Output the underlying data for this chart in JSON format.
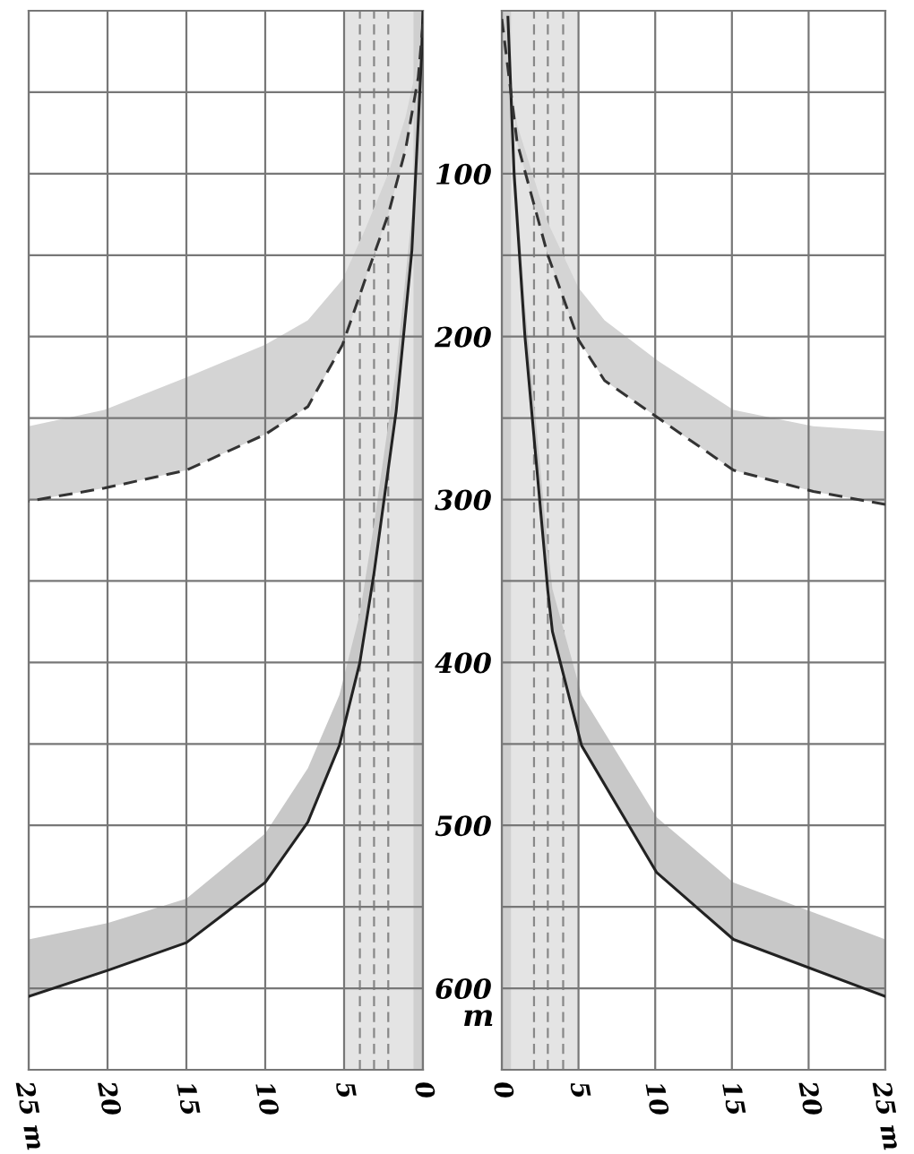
{
  "chart_data": [
    {
      "type": "line",
      "xlim": [
        25,
        0
      ],
      "ylim": [
        650,
        0
      ],
      "tick_labels": "x",
      "grid": true,
      "xticks": [
        {
          "value": 25,
          "label": "25 m"
        },
        20,
        15,
        10,
        5,
        0
      ],
      "yticks": [
        {
          "value": 0,
          "label": null
        },
        {
          "value": 50,
          "label": null
        },
        100,
        {
          "value": 150,
          "label": null
        },
        200,
        {
          "value": 250,
          "label": null
        },
        300,
        {
          "value": 350,
          "label": null
        },
        400,
        {
          "value": 450,
          "label": null
        },
        500,
        {
          "value": 550,
          "label": null
        },
        600
      ],
      "bands": [
        {
          "axis": "x",
          "from": 0,
          "to": 5,
          "color": "#e4e4e4"
        },
        {
          "axis": "x",
          "from": 0,
          "to": 0.6,
          "color": "#cfcfcf"
        }
      ],
      "ref_lines": [
        {
          "axis": "x",
          "value": 2.2,
          "color": "#888888",
          "line_style": "dashed"
        },
        {
          "axis": "x",
          "value": 3.1,
          "color": "#888888",
          "line_style": "dashed"
        },
        {
          "axis": "x",
          "value": 4.0,
          "color": "#888888",
          "line_style": "dashed"
        }
      ],
      "series": [
        {
          "color": "#222222",
          "line_style": "solid",
          "x": [
            0,
            0.1,
            0.7,
            1.7,
            3.1,
            4.0,
            5.3,
            7.3,
            10,
            15,
            20,
            25
          ],
          "values": [
            0,
            30,
            147,
            246,
            345,
            400,
            451,
            498,
            535,
            572,
            589,
            605
          ],
          "lower": [
            0,
            20,
            125,
            220,
            315,
            370,
            420,
            465,
            505,
            545,
            560,
            570
          ],
          "upper": [
            0,
            30,
            147,
            246,
            345,
            400,
            451,
            498,
            535,
            572,
            589,
            605
          ]
        },
        {
          "color": "#333333",
          "line_style": "dashed",
          "x": [
            0,
            0.3,
            1.1,
            2.2,
            3.7,
            5.1,
            7.3,
            10,
            15,
            20.2,
            25
          ],
          "values": [
            8,
            41,
            85,
            125,
            166,
            205,
            243,
            260,
            282,
            293,
            301
          ],
          "lower": [
            8,
            30,
            65,
            100,
            135,
            165,
            190,
            205,
            225,
            245,
            255
          ],
          "upper": [
            8,
            41,
            85,
            125,
            166,
            205,
            243,
            260,
            282,
            293,
            301
          ]
        }
      ]
    },
    {
      "type": "line",
      "xlim": [
        0,
        25
      ],
      "ylim": [
        650,
        0
      ],
      "ylabel": "m",
      "grid": true,
      "xticks": [
        0,
        5,
        10,
        15,
        20,
        {
          "value": 25,
          "label": "25 m"
        }
      ],
      "yticks": [
        {
          "value": 0,
          "label": null
        },
        {
          "value": 50,
          "label": null
        },
        100,
        {
          "value": 150,
          "label": null
        },
        200,
        {
          "value": 250,
          "label": null
        },
        300,
        {
          "value": 350,
          "label": null
        },
        400,
        {
          "value": 450,
          "label": null
        },
        500,
        {
          "value": 550,
          "label": null
        },
        600
      ],
      "bands": [
        {
          "axis": "x",
          "from": 0,
          "to": 5,
          "color": "#e4e4e4"
        },
        {
          "axis": "x",
          "from": 0,
          "to": 0.6,
          "color": "#cfcfcf"
        }
      ],
      "ref_lines": [
        {
          "axis": "x",
          "value": 2.1,
          "color": "#888888",
          "line_style": "dashed"
        },
        {
          "axis": "x",
          "value": 3.0,
          "color": "#888888",
          "line_style": "dashed"
        },
        {
          "axis": "x",
          "value": 4.0,
          "color": "#888888",
          "line_style": "dashed"
        }
      ],
      "series": [
        {
          "color": "#222222",
          "line_style": "solid",
          "x": [
            0.4,
            0.8,
            1.5,
            3,
            3.3,
            5.2,
            10.1,
            15.1,
            25
          ],
          "values": [
            4,
            100,
            199,
            356,
            381,
            451,
            529,
            570,
            605
          ],
          "lower": [
            0,
            85,
            180,
            330,
            355,
            420,
            495,
            535,
            570
          ],
          "upper": [
            4,
            100,
            199,
            356,
            381,
            451,
            529,
            570,
            605
          ]
        },
        {
          "color": "#333333",
          "line_style": "dashed",
          "x": [
            0,
            1.0,
            3,
            5,
            6.7,
            10.2,
            15.1,
            20.3,
            25
          ],
          "values": [
            5,
            81,
            150,
            202,
            227,
            250,
            282,
            295,
            303
          ],
          "lower": [
            5,
            70,
            130,
            170,
            190,
            215,
            245,
            255,
            258
          ],
          "upper": [
            5,
            81,
            150,
            202,
            227,
            250,
            282,
            295,
            303
          ]
        }
      ]
    }
  ]
}
